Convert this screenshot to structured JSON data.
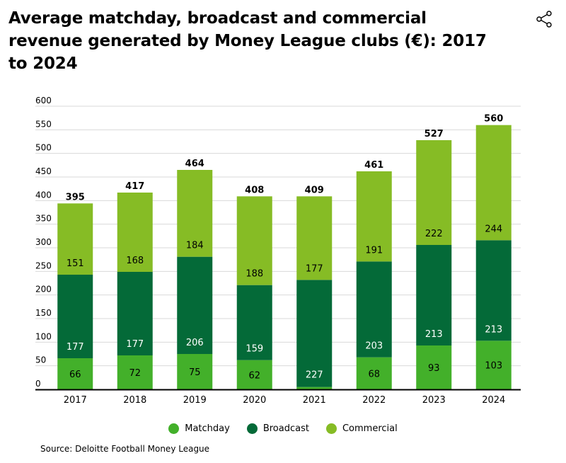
{
  "header": {
    "title": "Average matchday, broadcast and commercial revenue generated by Money League clubs (€): 2017 to 2024",
    "share_icon": "share-icon"
  },
  "source": "Source: Deloitte Football Money League",
  "colors": {
    "matchday": "#43b02a",
    "broadcast": "#046a38",
    "commercial": "#86bc25",
    "grid": "#d9d9d9",
    "axis": "#000000"
  },
  "chart_data": {
    "type": "bar",
    "stacked": true,
    "categories": [
      "2017",
      "2018",
      "2019",
      "2020",
      "2021",
      "2022",
      "2023",
      "2024"
    ],
    "series": [
      {
        "name": "Matchday",
        "values": [
          66,
          72,
          75,
          62,
          5,
          68,
          93,
          103
        ],
        "labels": [
          "66",
          "72",
          "75",
          "62",
          "",
          "68",
          "93",
          "103"
        ]
      },
      {
        "name": "Broadcast",
        "values": [
          177,
          177,
          206,
          159,
          227,
          203,
          213,
          213
        ],
        "labels": [
          "177",
          "177",
          "206",
          "159",
          "227",
          "203",
          "213",
          "213"
        ]
      },
      {
        "name": "Commercial",
        "values": [
          151,
          168,
          184,
          188,
          177,
          191,
          222,
          244
        ],
        "labels": [
          "151",
          "168",
          "184",
          "188",
          "177",
          "191",
          "222",
          "244"
        ]
      }
    ],
    "totals": [
      "395",
      "417",
      "464",
      "408",
      "409",
      "461",
      "527",
      "560"
    ],
    "ylim": [
      0,
      600
    ],
    "yticks": [
      0,
      50,
      100,
      150,
      200,
      250,
      300,
      350,
      400,
      450,
      500,
      550,
      600
    ],
    "grid": true,
    "legend_position": "bottom"
  }
}
